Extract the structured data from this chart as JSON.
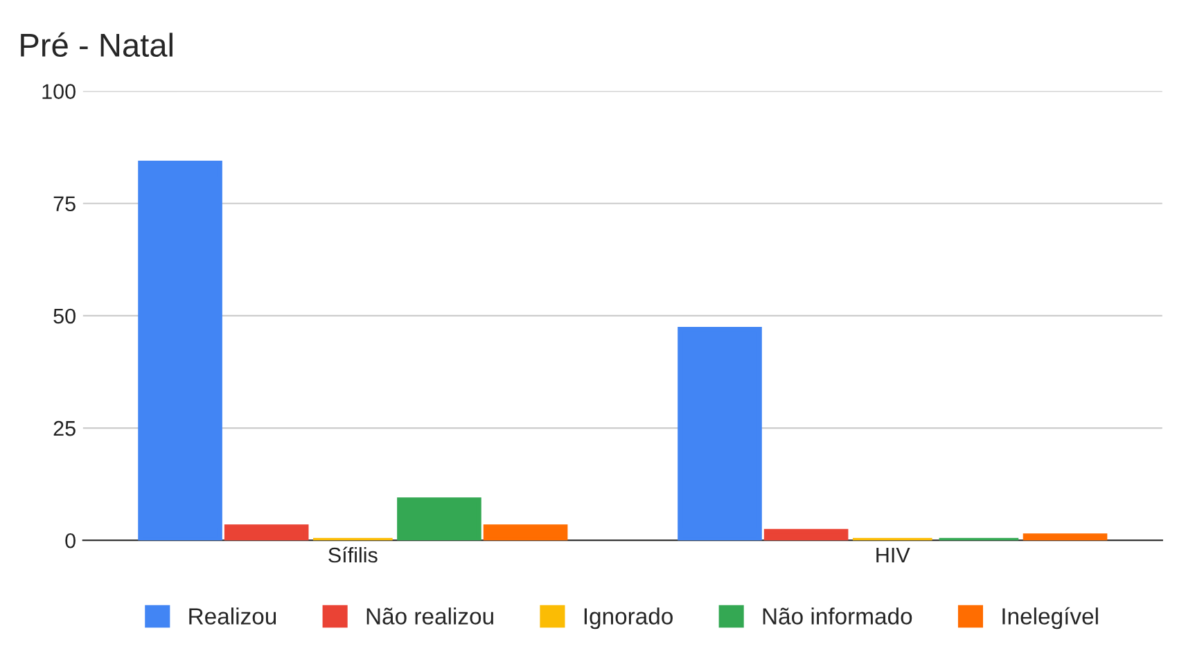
{
  "chart_data": {
    "type": "bar",
    "title": "Pré - Natal",
    "categories": [
      "Sífilis",
      "HIV"
    ],
    "series": [
      {
        "name": "Realizou",
        "color": "#4285f4",
        "values": [
          84,
          47
        ]
      },
      {
        "name": "Não realizou",
        "color": "#ea4335",
        "values": [
          3,
          2
        ]
      },
      {
        "name": "Ignorado",
        "color": "#fbbc04",
        "values": [
          0,
          0
        ]
      },
      {
        "name": "Não informado",
        "color": "#34a853",
        "values": [
          9,
          0
        ]
      },
      {
        "name": "Inelegível",
        "color": "#ff6d01",
        "values": [
          3,
          1
        ]
      }
    ],
    "ylim": [
      0,
      100
    ],
    "yticks": [
      0,
      25,
      50,
      75,
      100
    ],
    "grid": "y",
    "legend": "bottom"
  }
}
